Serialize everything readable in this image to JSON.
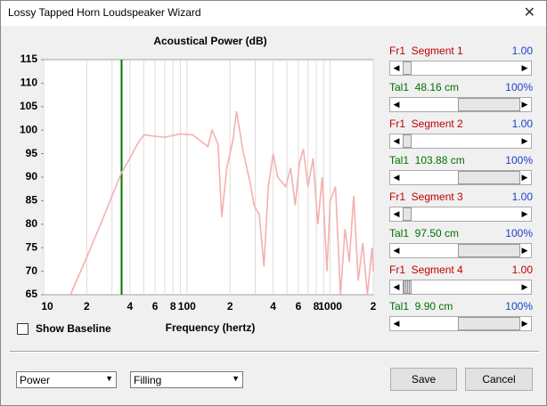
{
  "window": {
    "title": "Lossy Tapped Horn Loudspeaker Wizard"
  },
  "chart_data": {
    "type": "line",
    "title": "Acoustical Power (dB)",
    "x_label": "Frequency (hertz)",
    "x_scale": "log",
    "xlim": [
      10,
      2000
    ],
    "xticks": [
      10,
      {
        "value": 20,
        "label": "2"
      },
      {
        "value": 40,
        "label": "4"
      },
      {
        "value": 60,
        "label": "6"
      },
      {
        "value": 80,
        "label": "8"
      },
      100,
      {
        "value": 200,
        "label": "2"
      },
      {
        "value": 400,
        "label": "4"
      },
      {
        "value": 600,
        "label": "6"
      },
      {
        "value": 800,
        "label": "8"
      },
      1000,
      {
        "value": 2000,
        "label": "2"
      }
    ],
    "xminorticks": [
      30,
      50,
      70,
      90,
      300,
      500,
      700,
      900
    ],
    "ylim": [
      65,
      115
    ],
    "yticks": [
      65,
      70,
      75,
      80,
      85,
      90,
      95,
      100,
      105,
      110,
      115
    ],
    "grid": "x",
    "marker_x": 35,
    "marker_color": "#007800",
    "x": [
      15.4,
      20,
      25,
      30,
      35,
      40,
      45,
      50,
      60,
      70,
      90,
      110,
      140,
      150,
      165,
      175,
      190,
      210,
      222,
      245,
      275,
      295,
      320,
      345,
      370,
      400,
      430,
      490,
      530,
      570,
      610,
      650,
      700,
      760,
      820,
      880,
      950,
      1000,
      1090,
      1180,
      1270,
      1360,
      1460,
      1570,
      1690,
      1820,
      1960,
      2000
    ],
    "series": [
      {
        "color": "#f4b0b0",
        "values": [
          65,
          73,
          80,
          86,
          91,
          94,
          97,
          99,
          98.7,
          98.5,
          99.2,
          99,
          96.5,
          100,
          97,
          81.5,
          92,
          98,
          104,
          96,
          89,
          84,
          82,
          71,
          88,
          95,
          90,
          88,
          92,
          84,
          93,
          96,
          88,
          94,
          80,
          90,
          70,
          85,
          88,
          65,
          79,
          72,
          86,
          68,
          76,
          65,
          75,
          70
        ]
      }
    ]
  },
  "sliders": [
    {
      "label": "Fr1  Segment 1",
      "value": "1.00"
    },
    {
      "label": "Tal1  48.16 cm",
      "value": "100%"
    },
    {
      "label": "Fr1  Segment 2",
      "value": "1.00"
    },
    {
      "label": "Tal1  103.88 cm",
      "value": "100%"
    },
    {
      "label": "Fr1  Segment 3",
      "value": "1.00"
    },
    {
      "label": "Tal1  97.50 cm",
      "value": "100%"
    },
    {
      "label": "Fr1  Segment 4",
      "value": "1.00"
    },
    {
      "label": "Tal1  9.90 cm",
      "value": "100%"
    }
  ],
  "checkbox": {
    "label": "Show Baseline"
  },
  "dropdowns": [
    "Power",
    "Filling"
  ],
  "buttons": [
    "Save",
    "Cancel"
  ]
}
